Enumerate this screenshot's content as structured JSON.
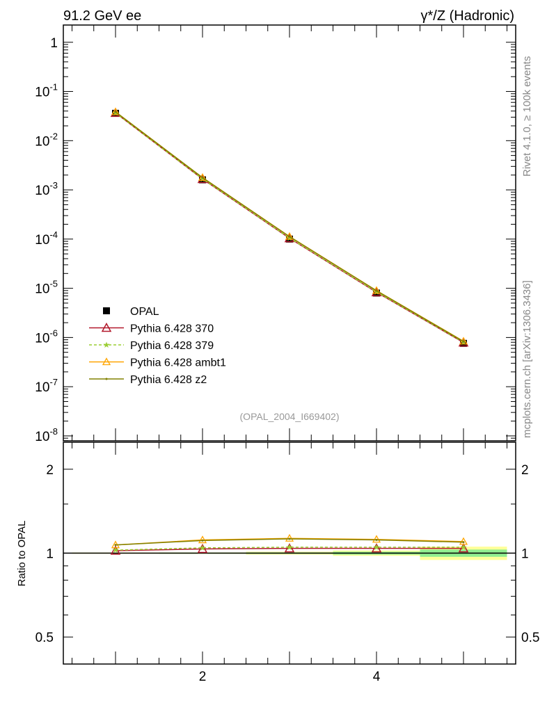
{
  "chart_data": [
    {
      "type": "line",
      "title_left": "91.2 GeV ee",
      "title_right": "γ*/Z (Hadronic)",
      "xlim": [
        0.4,
        5.6
      ],
      "ylim_log10": [
        -8.1,
        0.35
      ],
      "yscale": "log",
      "y_tick_labels": [
        "1",
        "10^-1",
        "10^-2",
        "10^-3",
        "10^-4",
        "10^-5",
        "10^-6",
        "10^-7",
        "10^-8"
      ],
      "x": [
        1,
        2,
        3,
        4,
        5
      ],
      "annotation": "(OPAL_2004_I669402)",
      "legend_position": "bottom-left",
      "series": [
        {
          "name": "OPAL",
          "color": "#000000",
          "values": [
            0.036,
            0.0016,
            0.0001,
            8e-06,
            7.6e-07
          ]
        },
        {
          "name": "Pythia 6.428 370",
          "color": "#b2182b",
          "values": [
            0.0367,
            0.00166,
            0.000104,
            8.3e-06,
            7.9e-07
          ]
        },
        {
          "name": "Pythia 6.428 379",
          "color": "#9acd32",
          "values": [
            0.0368,
            0.00167,
            0.000105,
            8.4e-06,
            8e-07
          ]
        },
        {
          "name": "Pythia 6.428 ambt1",
          "color": "#ffa500",
          "values": [
            0.0385,
            0.00178,
            0.000113,
            9e-06,
            8.4e-07
          ]
        },
        {
          "name": "Pythia 6.428 z2",
          "color": "#808000",
          "values": [
            0.0384,
            0.00177,
            0.000112,
            8.9e-06,
            8.3e-07
          ]
        }
      ]
    },
    {
      "type": "line",
      "ylabel": "Ratio to OPAL",
      "yscale": "log",
      "ylim": [
        0.4,
        2.5
      ],
      "y_tick_labels": [
        "0.5",
        "1",
        "2"
      ],
      "x_tick_labels": [
        "2",
        "4"
      ],
      "xlim": [
        0.4,
        5.6
      ],
      "x": [
        1,
        2,
        3,
        4,
        5
      ],
      "band_stat": [
        0.003,
        0.004,
        0.006,
        0.012,
        0.03
      ],
      "band_total": [
        0.005,
        0.006,
        0.012,
        0.022,
        0.055
      ],
      "series": [
        {
          "name": "Pythia 6.428 370",
          "values": [
            1.02,
            1.035,
            1.04,
            1.04,
            1.04
          ]
        },
        {
          "name": "Pythia 6.428 379",
          "values": [
            1.025,
            1.045,
            1.05,
            1.05,
            1.05
          ]
        },
        {
          "name": "Pythia 6.428 ambt1",
          "values": [
            1.07,
            1.115,
            1.13,
            1.12,
            1.1
          ]
        },
        {
          "name": "Pythia 6.428 z2",
          "values": [
            1.07,
            1.11,
            1.125,
            1.115,
            1.095
          ]
        }
      ]
    }
  ],
  "side_text_top": "Rivet 4.1.0, ≥ 100k events",
  "side_text_bottom": "mcplots.cern.ch [arXiv:1306.3436]"
}
